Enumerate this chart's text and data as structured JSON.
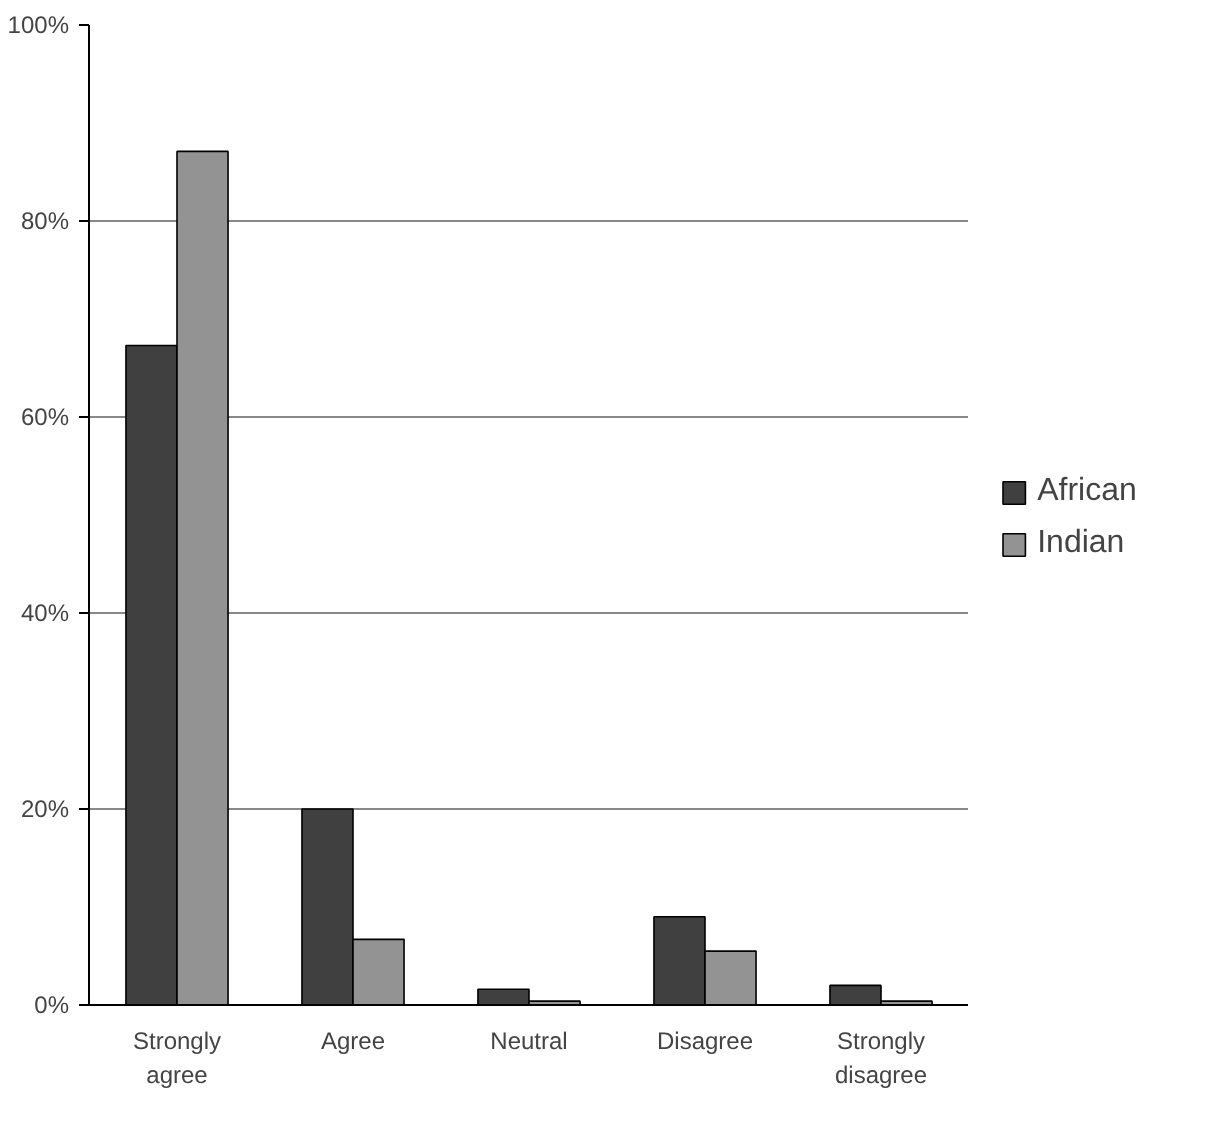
{
  "chart_data": {
    "type": "bar",
    "categories": [
      "Strongly agree",
      "Agree",
      "Neutral",
      "Disagree",
      "Strongly disagree"
    ],
    "series": [
      {
        "name": "African",
        "color": "#404040",
        "values": [
          67.3,
          20.0,
          1.6,
          9.0,
          2.0
        ]
      },
      {
        "name": "Indian",
        "color": "#939393",
        "values": [
          87.1,
          6.7,
          0.4,
          5.5,
          0.4
        ]
      }
    ],
    "ylim": [
      0,
      100
    ],
    "yticks": [
      {
        "value": 0,
        "label": "0%"
      },
      {
        "value": 20,
        "label": "20%"
      },
      {
        "value": 40,
        "label": "40%"
      },
      {
        "value": 60,
        "label": "60%"
      },
      {
        "value": 80,
        "label": "80%"
      },
      {
        "value": 100,
        "label": "100%"
      }
    ],
    "grid": "y",
    "legend": "right"
  }
}
